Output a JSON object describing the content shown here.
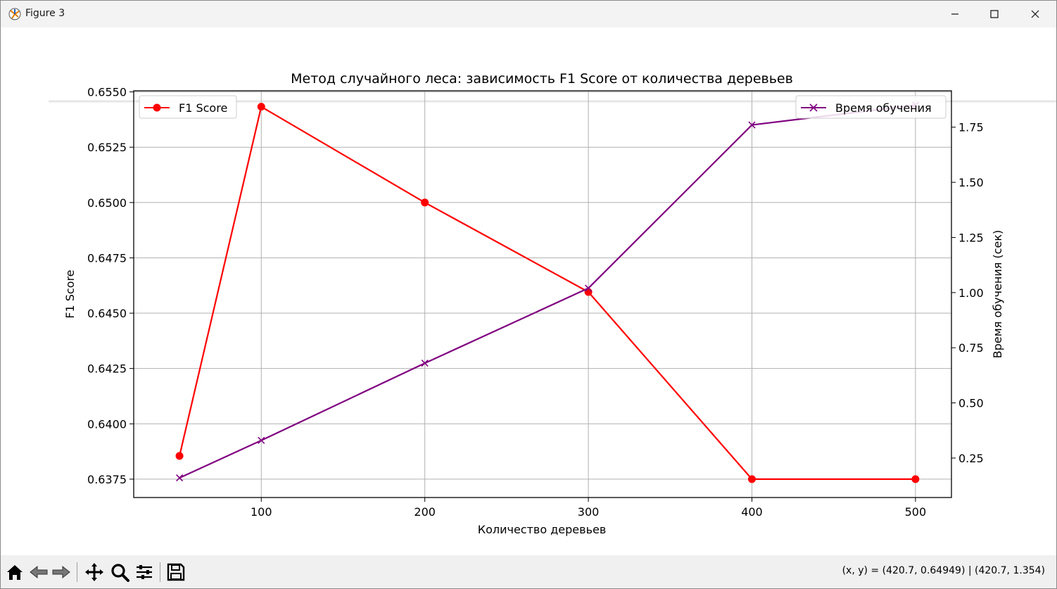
{
  "window": {
    "title": "Figure 3",
    "icon": "matplotlib-icon",
    "controls": [
      "minimize-icon",
      "maximize-icon",
      "close-icon"
    ]
  },
  "toolbar": {
    "buttons": [
      "home-icon",
      "back-arrow-icon",
      "forward-arrow-icon",
      "pan-icon",
      "zoom-icon",
      "configure-subplots-icon",
      "save-icon"
    ],
    "coords_text": "(x, y) = (420.7, 0.64949) | (420.7, 1.354)"
  },
  "chart_data": {
    "type": "line",
    "title": "Метод случайного леса: зависимость F1 Score от количества деревьев",
    "xlabel": "Количество деревьев",
    "ylabel": "F1 Score",
    "ylabel_right": "Время обучения (сек)",
    "x": [
      50,
      100,
      200,
      300,
      400,
      500
    ],
    "xlim": [
      22,
      522
    ],
    "ylim": [
      0.63667,
      0.65505
    ],
    "ylim_right": [
      0.071,
      1.915
    ],
    "xticks": [
      "100",
      "200",
      "300",
      "400",
      "500"
    ],
    "xtick_values": [
      100,
      200,
      300,
      400,
      500
    ],
    "yticks": [
      "0.6375",
      "0.6400",
      "0.6425",
      "0.6450",
      "0.6475",
      "0.6500",
      "0.6525",
      "0.6550"
    ],
    "ytick_values": [
      0.6375,
      0.64,
      0.6425,
      0.645,
      0.6475,
      0.65,
      0.6525,
      0.655
    ],
    "yticks_right": [
      "0.25",
      "0.50",
      "0.75",
      "1.00",
      "1.25",
      "1.50",
      "1.75"
    ],
    "ytick_values_right": [
      0.25,
      0.5,
      0.75,
      1.0,
      1.25,
      1.5,
      1.75
    ],
    "grid": true,
    "series": [
      {
        "name": "F1 Score",
        "axis": "left",
        "values": [
          0.63855,
          0.65433,
          0.65,
          0.64596,
          0.6375,
          0.6375
        ],
        "color": "#ff0000",
        "marker": "circle",
        "legend": "top-left"
      },
      {
        "name": "Время обучения",
        "axis": "right",
        "values": [
          0.16,
          0.33,
          0.68,
          1.02,
          1.76,
          1.85
        ],
        "color": "#800080",
        "marker": "x",
        "legend": "top-right"
      }
    ]
  }
}
